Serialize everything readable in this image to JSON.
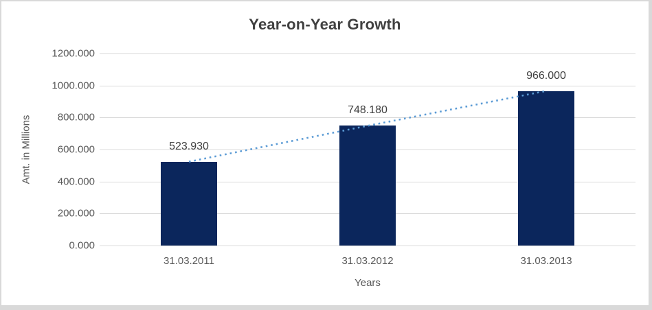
{
  "chart_data": {
    "type": "bar",
    "title": "Year-on-Year Growth",
    "categories": [
      "31.03.2011",
      "31.03.2012",
      "31.03.2013"
    ],
    "values": [
      523.93,
      748.18,
      966.0
    ],
    "data_labels": [
      "523.930",
      "748.180",
      "966.000"
    ],
    "xlabel": "Years",
    "ylabel": "Amt. in Millions",
    "ylim": [
      0,
      1200
    ],
    "ytick_interval": 200,
    "ytick_labels": [
      "0.000",
      "200.000",
      "400.000",
      "600.000",
      "800.000",
      "1000.000",
      "1200.000"
    ],
    "grid": true,
    "legend": false,
    "trendline": {
      "type": "linear",
      "style": "dotted",
      "color": "#5B9BD5"
    },
    "colors": {
      "bar": "#0B265C",
      "gridline": "#D9D9D9",
      "tick_label": "#595959",
      "title": "#404040",
      "data_label": "#404040",
      "border": "#D9D9D9",
      "background": "#FFFFFF"
    }
  }
}
